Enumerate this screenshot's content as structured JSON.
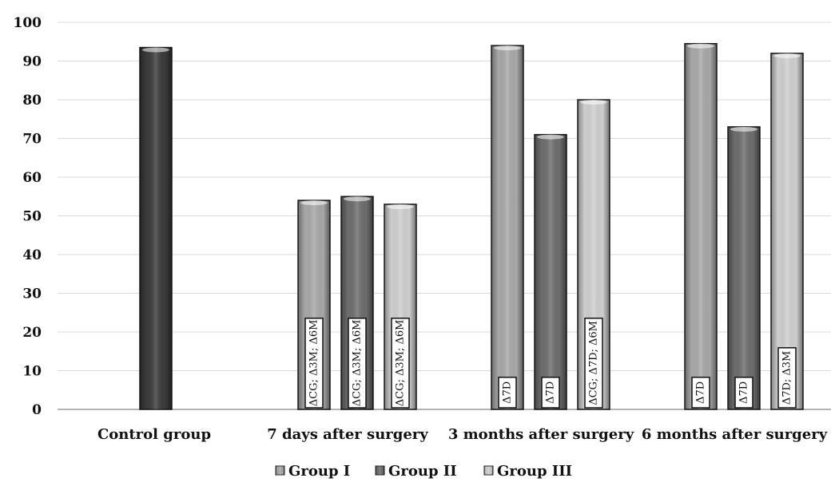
{
  "chart_data": {
    "type": "bar",
    "ylim": [
      0,
      100
    ],
    "yticks": [
      0,
      10,
      20,
      30,
      40,
      50,
      60,
      70,
      80,
      90,
      100
    ],
    "grid": true,
    "legend_position": "bottom",
    "categories": [
      "Control group",
      "7 days after surgery",
      "3 months after surgery",
      "6 months after surgery"
    ],
    "series": [
      {
        "name": "Group I",
        "color": "#a8a8a8",
        "values": [
          null,
          54,
          94,
          94.5
        ]
      },
      {
        "name": "Group II",
        "color": "#6e6e6e",
        "values": [
          null,
          55,
          71,
          73
        ]
      },
      {
        "name": "Group III",
        "color": "#cfcfcf",
        "values": [
          null,
          53,
          80,
          92
        ]
      }
    ],
    "control": {
      "category": "Control group",
      "value": 93.5,
      "color": "#3c3c3c"
    },
    "annotations": [
      {
        "category": "7 days after surgery",
        "series": "Group I",
        "text": "ΔCG; Δ3M; Δ6M"
      },
      {
        "category": "7 days after surgery",
        "series": "Group II",
        "text": "ΔCG; Δ3M; Δ6M"
      },
      {
        "category": "7 days after surgery",
        "series": "Group III",
        "text": "ΔCG; Δ3M; Δ6M"
      },
      {
        "category": "3 months after surgery",
        "series": "Group I",
        "text": "Δ7D"
      },
      {
        "category": "3 months after surgery",
        "series": "Group II",
        "text": "Δ7D"
      },
      {
        "category": "3 months after surgery",
        "series": "Group III",
        "text": "ΔCG; Δ7D; Δ6M"
      },
      {
        "category": "6 months after surgery",
        "series": "Group I",
        "text": "Δ7D"
      },
      {
        "category": "6 months after surgery",
        "series": "Group II",
        "text": "Δ7D"
      },
      {
        "category": "6 months after surgery",
        "series": "Group III",
        "text": "Δ7D; Δ3M"
      }
    ]
  }
}
